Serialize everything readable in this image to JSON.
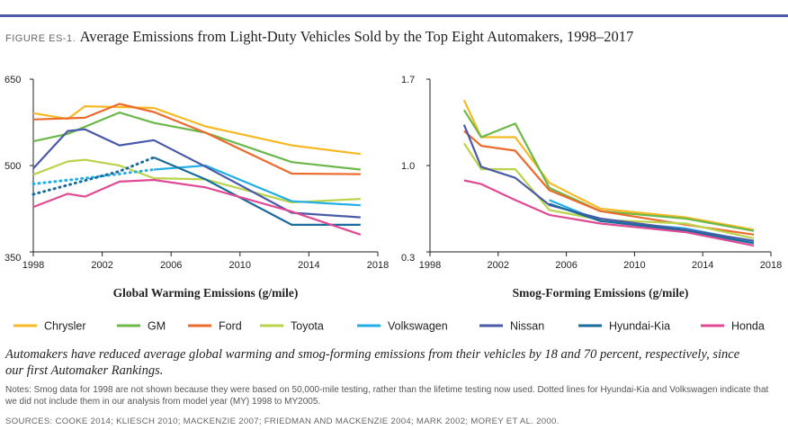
{
  "header": {
    "figure_label": "FIGURE ES-1.",
    "title": "Average Emissions from Light-Duty Vehicles Sold by the Top Eight Automakers, 1998–2017"
  },
  "colors": {
    "Chrysler": "#f6b924",
    "GM": "#6cb84a",
    "Ford": "#ec6a2c",
    "Toyota": "#b9d44a",
    "Volkswagen": "#23aee5",
    "Nissan": "#4a5aa8",
    "Hyundai-Kia": "#1a6c9a",
    "Honda": "#e04993",
    "accent": "#4a58a6"
  },
  "chart_data": [
    {
      "type": "line",
      "xlabel": "Global Warming Emissions (g/mile)",
      "ylabel": "",
      "xlim": [
        1998,
        2018
      ],
      "ylim": [
        350,
        650
      ],
      "xticks": [
        "1998",
        "2002",
        "2006",
        "2010",
        "2014",
        "2018"
      ],
      "yticks": [
        "350",
        "500",
        "650"
      ],
      "series": [
        {
          "name": "Chrysler",
          "x": [
            1998,
            2000,
            2001,
            2005,
            2008,
            2013,
            2017
          ],
          "y": [
            591,
            581,
            603,
            600,
            568,
            535,
            520
          ]
        },
        {
          "name": "GM",
          "x": [
            1998,
            2000,
            2003,
            2005,
            2008,
            2013,
            2017
          ],
          "y": [
            542,
            555,
            592,
            574,
            557,
            506,
            493
          ]
        },
        {
          "name": "Ford",
          "x": [
            1998,
            2001,
            2003,
            2005,
            2008,
            2013,
            2017
          ],
          "y": [
            580,
            583,
            607,
            593,
            557,
            486,
            485
          ]
        },
        {
          "name": "Toyota",
          "x": [
            1998,
            2000,
            2001,
            2003,
            2005,
            2008,
            2013,
            2017
          ],
          "y": [
            484,
            507,
            510,
            500,
            478,
            476,
            436,
            442
          ]
        },
        {
          "name": "Volkswagen",
          "dotted_x": [
            1998,
            2001,
            2005
          ],
          "dotted_y": [
            468,
            478,
            493
          ],
          "x": [
            2005,
            2008,
            2013,
            2017
          ],
          "y": [
            493,
            500,
            438,
            431
          ]
        },
        {
          "name": "Nissan",
          "x": [
            1998,
            2000,
            2001,
            2003,
            2005,
            2008,
            2013,
            2017
          ],
          "y": [
            495,
            560,
            563,
            535,
            544,
            498,
            418,
            410
          ]
        },
        {
          "name": "Hyundai-Kia",
          "dotted_x": [
            1998,
            2003,
            2005
          ],
          "dotted_y": [
            450,
            490,
            514
          ],
          "x": [
            2005,
            2008,
            2013,
            2017
          ],
          "y": [
            514,
            476,
            397,
            397
          ]
        },
        {
          "name": "Honda",
          "x": [
            1998,
            2000,
            2001,
            2003,
            2005,
            2008,
            2013,
            2017
          ],
          "y": [
            428,
            451,
            446,
            472,
            475,
            462,
            420,
            380
          ]
        }
      ]
    },
    {
      "type": "line",
      "xlabel": "Smog-Forming Emissions (g/mile)",
      "ylabel": "",
      "xlim": [
        1998,
        2018
      ],
      "ylim": [
        0.3,
        1.7
      ],
      "xticks": [
        "1998",
        "2002",
        "2006",
        "2010",
        "2014",
        "2018"
      ],
      "yticks": [
        "0.3",
        "1.0",
        "1.7"
      ],
      "series": [
        {
          "name": "Chrysler",
          "x": [
            2000,
            2001,
            2003,
            2005,
            2008,
            2013,
            2017
          ],
          "y": [
            1.53,
            1.23,
            1.23,
            0.86,
            0.65,
            0.58,
            0.48
          ]
        },
        {
          "name": "GM",
          "x": [
            2000,
            2001,
            2003,
            2005,
            2008,
            2013,
            2017
          ],
          "y": [
            1.45,
            1.23,
            1.34,
            0.82,
            0.63,
            0.57,
            0.47
          ]
        },
        {
          "name": "Ford",
          "x": [
            2000,
            2001,
            2003,
            2005,
            2008,
            2013,
            2017
          ],
          "y": [
            1.28,
            1.16,
            1.12,
            0.8,
            0.63,
            0.52,
            0.44
          ]
        },
        {
          "name": "Toyota",
          "x": [
            2000,
            2001,
            2003,
            2005,
            2008,
            2013,
            2017
          ],
          "y": [
            1.18,
            0.97,
            0.97,
            0.64,
            0.56,
            0.53,
            0.41
          ]
        },
        {
          "name": "Volkswagen",
          "x": [
            2005,
            2008,
            2013,
            2017
          ],
          "y": [
            0.72,
            0.55,
            0.49,
            0.38
          ]
        },
        {
          "name": "Nissan",
          "x": [
            2000,
            2001,
            2003,
            2005,
            2008,
            2013,
            2017
          ],
          "y": [
            1.33,
            0.99,
            0.9,
            0.68,
            0.57,
            0.48,
            0.39
          ]
        },
        {
          "name": "Hyundai-Kia",
          "x": [
            2005,
            2008,
            2013,
            2017
          ],
          "y": [
            0.69,
            0.55,
            0.47,
            0.37
          ]
        },
        {
          "name": "Honda",
          "x": [
            2000,
            2001,
            2003,
            2005,
            2008,
            2013,
            2017
          ],
          "y": [
            0.88,
            0.85,
            0.72,
            0.6,
            0.53,
            0.46,
            0.35
          ]
        }
      ]
    }
  ],
  "legend": [
    "Chrysler",
    "GM",
    "Ford",
    "Toyota",
    "Volkswagen",
    "Nissan",
    "Hyundai-Kia",
    "Honda"
  ],
  "caption": "Automakers have reduced average global warming and smog-forming emissions from their vehicles by 18 and 70 percent, respectively, since our first Automaker Rankings.",
  "notes": "Notes: Smog data for 1998 are not shown because they were based on 50,000-mile testing, rather than the lifetime testing now used. Dotted lines for Hyundai-Kia and Volkswagen indicate that we did not include them in our analysis from model year (MY) 1998 to MY2005.",
  "sources": "SOURCES: COOKE 2014; KLIESCH 2010; MACKENZIE 2007; FRIEDMAN AND MACKENZIE 2004; MARK 2002; MOREY ET AL. 2000."
}
